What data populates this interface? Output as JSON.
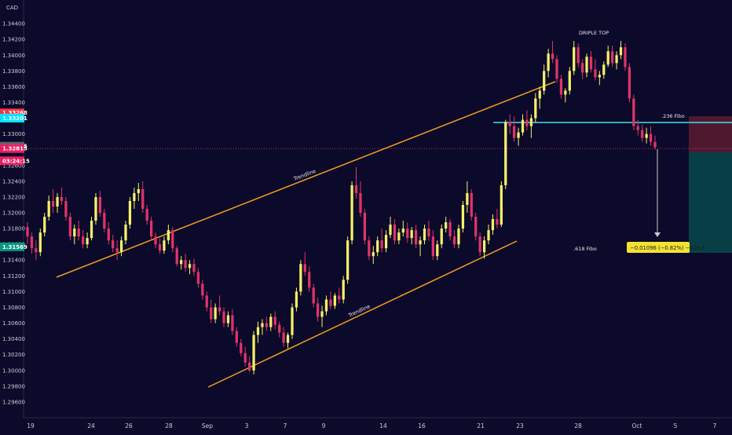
{
  "chart_data": {
    "type": "candlestick",
    "currency_label": "CAD",
    "ylim": [
      1.294,
      1.347
    ],
    "y_ticks": [
      "1.34400",
      "1.34200",
      "1.34000",
      "1.33800",
      "1.33600",
      "1.33400",
      "1.33200",
      "1.33000",
      "1.32800",
      "1.32600",
      "1.32400",
      "1.32200",
      "1.32000",
      "1.31800",
      "1.31600",
      "1.31400",
      "1.31200",
      "1.31000",
      "1.30800",
      "1.30600",
      "1.30400",
      "1.30200",
      "1.30000",
      "1.29800",
      "1.29600"
    ],
    "x_ticks": [
      "19",
      "24",
      "26",
      "28",
      "Sep",
      "3",
      "7",
      "9",
      "14",
      "16",
      "21",
      "23",
      "28",
      "Oct",
      "5",
      "7"
    ],
    "grid": false,
    "price_tags": [
      {
        "label": "1.33268",
        "value": 1.33268,
        "color": "#f23645"
      },
      {
        "label": "1.33201",
        "value": 1.33201,
        "color": "#00e5ff"
      },
      {
        "label": "1.32845",
        "value": 1.32845,
        "color": "#5d606b"
      },
      {
        "label": "1.32815",
        "value": 1.32815,
        "color": "#e91e63"
      },
      {
        "label": "03:24:15",
        "value": 1.3266,
        "color": "#e91e63"
      },
      {
        "label": "1.31569",
        "value": 1.31569,
        "color": "#089981"
      }
    ],
    "annotations": {
      "triple_top": "DRIPLE TOP",
      "fibo_236": ".236 Fibo",
      "fibo_618": ".618 Fibo",
      "trendline_upper": "Trendline",
      "trendline_lower": "Trendline",
      "measure": "−0.01096 (−0.82%) −109.6"
    },
    "colors": {
      "bull": "#f5f06a",
      "bear": "#e0336a",
      "trendline": "#f39c22",
      "fibo_line": "#3ee3ee",
      "measure_bg": "#f3e233"
    },
    "candles": [
      [
        1.3182,
        1.3188,
        1.316,
        1.317
      ],
      [
        1.317,
        1.3175,
        1.3148,
        1.3155
      ],
      [
        1.3155,
        1.3165,
        1.314,
        1.315
      ],
      [
        1.315,
        1.318,
        1.3145,
        1.3175
      ],
      [
        1.3175,
        1.32,
        1.317,
        1.3195
      ],
      [
        1.3195,
        1.3222,
        1.319,
        1.3215
      ],
      [
        1.3215,
        1.323,
        1.32,
        1.3208
      ],
      [
        1.3208,
        1.3225,
        1.32,
        1.322
      ],
      [
        1.322,
        1.3232,
        1.321,
        1.3215
      ],
      [
        1.3215,
        1.322,
        1.319,
        1.3195
      ],
      [
        1.3195,
        1.32,
        1.3165,
        1.317
      ],
      [
        1.317,
        1.3185,
        1.316,
        1.318
      ],
      [
        1.318,
        1.319,
        1.3165,
        1.317
      ],
      [
        1.317,
        1.3178,
        1.3155,
        1.316
      ],
      [
        1.316,
        1.3175,
        1.3155,
        1.3168
      ],
      [
        1.3168,
        1.3195,
        1.3165,
        1.319
      ],
      [
        1.319,
        1.3225,
        1.3185,
        1.322
      ],
      [
        1.322,
        1.3228,
        1.3195,
        1.32
      ],
      [
        1.32,
        1.3205,
        1.3175,
        1.318
      ],
      [
        1.318,
        1.3188,
        1.316,
        1.3165
      ],
      [
        1.3165,
        1.3172,
        1.315,
        1.3155
      ],
      [
        1.3155,
        1.3165,
        1.314,
        1.315
      ],
      [
        1.315,
        1.317,
        1.3145,
        1.3165
      ],
      [
        1.3165,
        1.319,
        1.316,
        1.3185
      ],
      [
        1.3185,
        1.322,
        1.318,
        1.3215
      ],
      [
        1.3215,
        1.3232,
        1.3205,
        1.3225
      ],
      [
        1.3225,
        1.3238,
        1.3215,
        1.323
      ],
      [
        1.323,
        1.324,
        1.32,
        1.3205
      ],
      [
        1.3205,
        1.321,
        1.3185,
        1.319
      ],
      [
        1.319,
        1.3195,
        1.3165,
        1.317
      ],
      [
        1.317,
        1.3175,
        1.3155,
        1.316
      ],
      [
        1.316,
        1.3168,
        1.3148,
        1.3152
      ],
      [
        1.3152,
        1.317,
        1.3148,
        1.3165
      ],
      [
        1.3165,
        1.3185,
        1.316,
        1.3178
      ],
      [
        1.3178,
        1.3182,
        1.315,
        1.3155
      ],
      [
        1.3155,
        1.3158,
        1.3132,
        1.3135
      ],
      [
        1.3135,
        1.3145,
        1.3128,
        1.314
      ],
      [
        1.314,
        1.3148,
        1.3125,
        1.313
      ],
      [
        1.313,
        1.314,
        1.3122,
        1.3135
      ],
      [
        1.3135,
        1.3142,
        1.312,
        1.3125
      ],
      [
        1.3125,
        1.313,
        1.3105,
        1.311
      ],
      [
        1.311,
        1.3115,
        1.309,
        1.3095
      ],
      [
        1.3095,
        1.31,
        1.3075,
        1.308
      ],
      [
        1.308,
        1.309,
        1.306,
        1.3065
      ],
      [
        1.3065,
        1.3085,
        1.306,
        1.308
      ],
      [
        1.308,
        1.3095,
        1.307,
        1.3075
      ],
      [
        1.3075,
        1.308,
        1.3055,
        1.306
      ],
      [
        1.306,
        1.3075,
        1.3055,
        1.307
      ],
      [
        1.307,
        1.3078,
        1.3045,
        1.305
      ],
      [
        1.305,
        1.3055,
        1.303,
        1.3035
      ],
      [
        1.3035,
        1.304,
        1.3018,
        1.3022
      ],
      [
        1.3022,
        1.303,
        1.3005,
        1.301
      ],
      [
        1.301,
        1.3018,
        1.2998,
        1.3
      ],
      [
        1.3,
        1.305,
        1.2995,
        1.3045
      ],
      [
        1.3045,
        1.3062,
        1.3035,
        1.3055
      ],
      [
        1.3055,
        1.3065,
        1.3045,
        1.306
      ],
      [
        1.306,
        1.3068,
        1.305,
        1.3055
      ],
      [
        1.3055,
        1.3072,
        1.305,
        1.3068
      ],
      [
        1.3068,
        1.3075,
        1.3052,
        1.3058
      ],
      [
        1.3058,
        1.3062,
        1.3042,
        1.3048
      ],
      [
        1.3048,
        1.3055,
        1.303,
        1.3035
      ],
      [
        1.3035,
        1.3048,
        1.3028,
        1.3045
      ],
      [
        1.3045,
        1.3085,
        1.304,
        1.308
      ],
      [
        1.308,
        1.3105,
        1.3075,
        1.31
      ],
      [
        1.31,
        1.314,
        1.3095,
        1.3135
      ],
      [
        1.3135,
        1.315,
        1.312,
        1.3125
      ],
      [
        1.3125,
        1.3132,
        1.31,
        1.3105
      ],
      [
        1.3105,
        1.311,
        1.308,
        1.3085
      ],
      [
        1.3085,
        1.3092,
        1.3062,
        1.3068
      ],
      [
        1.3068,
        1.3082,
        1.3055,
        1.3075
      ],
      [
        1.3075,
        1.3095,
        1.307,
        1.309
      ],
      [
        1.309,
        1.31,
        1.3078,
        1.3082
      ],
      [
        1.3082,
        1.3098,
        1.3078,
        1.3095
      ],
      [
        1.3095,
        1.3105,
        1.3085,
        1.309
      ],
      [
        1.309,
        1.312,
        1.3085,
        1.3115
      ],
      [
        1.3115,
        1.317,
        1.311,
        1.3165
      ],
      [
        1.3165,
        1.324,
        1.316,
        1.3235
      ],
      [
        1.3235,
        1.3258,
        1.3218,
        1.3225
      ],
      [
        1.3225,
        1.324,
        1.3195,
        1.32
      ],
      [
        1.32,
        1.3205,
        1.316,
        1.3165
      ],
      [
        1.3165,
        1.317,
        1.314,
        1.3145
      ],
      [
        1.3145,
        1.3158,
        1.3135,
        1.315
      ],
      [
        1.315,
        1.317,
        1.3145,
        1.3165
      ],
      [
        1.3165,
        1.318,
        1.315,
        1.3155
      ],
      [
        1.3155,
        1.3178,
        1.315,
        1.3172
      ],
      [
        1.3172,
        1.3195,
        1.3168,
        1.3185
      ],
      [
        1.3185,
        1.3192,
        1.316,
        1.3165
      ],
      [
        1.3165,
        1.318,
        1.316,
        1.3175
      ],
      [
        1.3175,
        1.319,
        1.317,
        1.318
      ],
      [
        1.318,
        1.3188,
        1.3162,
        1.3168
      ],
      [
        1.3168,
        1.3182,
        1.316,
        1.3178
      ],
      [
        1.3178,
        1.3185,
        1.3155,
        1.316
      ],
      [
        1.316,
        1.317,
        1.3145,
        1.3165
      ],
      [
        1.3165,
        1.3185,
        1.316,
        1.318
      ],
      [
        1.318,
        1.319,
        1.3165,
        1.317
      ],
      [
        1.317,
        1.3178,
        1.314,
        1.3145
      ],
      [
        1.3145,
        1.3165,
        1.314,
        1.316
      ],
      [
        1.316,
        1.3185,
        1.3155,
        1.318
      ],
      [
        1.318,
        1.3195,
        1.3175,
        1.3188
      ],
      [
        1.3188,
        1.3192,
        1.3165,
        1.317
      ],
      [
        1.317,
        1.3178,
        1.3155,
        1.316
      ],
      [
        1.316,
        1.3185,
        1.3155,
        1.318
      ],
      [
        1.318,
        1.3215,
        1.3175,
        1.321
      ],
      [
        1.321,
        1.324,
        1.32,
        1.3225
      ],
      [
        1.3225,
        1.323,
        1.319,
        1.3195
      ],
      [
        1.3195,
        1.32,
        1.3165,
        1.317
      ],
      [
        1.317,
        1.3175,
        1.3145,
        1.315
      ],
      [
        1.315,
        1.317,
        1.3142,
        1.3165
      ],
      [
        1.3165,
        1.3185,
        1.316,
        1.3178
      ],
      [
        1.3178,
        1.3198,
        1.3172,
        1.3192
      ],
      [
        1.3192,
        1.3205,
        1.318,
        1.3185
      ],
      [
        1.3185,
        1.324,
        1.3182,
        1.3235
      ],
      [
        1.3235,
        1.3318,
        1.323,
        1.3315
      ],
      [
        1.3315,
        1.3325,
        1.33,
        1.331
      ],
      [
        1.331,
        1.3322,
        1.329,
        1.3295
      ],
      [
        1.3295,
        1.3308,
        1.3285,
        1.3302
      ],
      [
        1.3302,
        1.3325,
        1.3298,
        1.3318
      ],
      [
        1.3318,
        1.333,
        1.3305,
        1.331
      ],
      [
        1.331,
        1.3325,
        1.3295,
        1.332
      ],
      [
        1.332,
        1.3352,
        1.3315,
        1.3345
      ],
      [
        1.3345,
        1.336,
        1.3332,
        1.3355
      ],
      [
        1.3355,
        1.3388,
        1.335,
        1.338
      ],
      [
        1.338,
        1.3408,
        1.3372,
        1.3402
      ],
      [
        1.3402,
        1.3418,
        1.339,
        1.3395
      ],
      [
        1.3395,
        1.34,
        1.3365,
        1.337
      ],
      [
        1.337,
        1.3375,
        1.3345,
        1.335
      ],
      [
        1.335,
        1.3358,
        1.334,
        1.3355
      ],
      [
        1.3355,
        1.3385,
        1.335,
        1.338
      ],
      [
        1.338,
        1.3418,
        1.3375,
        1.341
      ],
      [
        1.341,
        1.3415,
        1.3385,
        1.339
      ],
      [
        1.339,
        1.3395,
        1.337,
        1.3378
      ],
      [
        1.3378,
        1.3402,
        1.3372,
        1.3398
      ],
      [
        1.3398,
        1.3405,
        1.3378,
        1.3382
      ],
      [
        1.3382,
        1.3395,
        1.3368,
        1.3372
      ],
      [
        1.3372,
        1.338,
        1.3362,
        1.3375
      ],
      [
        1.3375,
        1.3392,
        1.337,
        1.3388
      ],
      [
        1.3388,
        1.3412,
        1.3385,
        1.3405
      ],
      [
        1.3405,
        1.3412,
        1.3385,
        1.339
      ],
      [
        1.339,
        1.3405,
        1.3382,
        1.34
      ],
      [
        1.34,
        1.3418,
        1.3395,
        1.341
      ],
      [
        1.341,
        1.3415,
        1.338,
        1.3385
      ],
      [
        1.3385,
        1.339,
        1.334,
        1.3345
      ],
      [
        1.3345,
        1.335,
        1.3305,
        1.331
      ],
      [
        1.331,
        1.3318,
        1.3298,
        1.3305
      ],
      [
        1.3305,
        1.3312,
        1.329,
        1.3295
      ],
      [
        1.3295,
        1.3308,
        1.3288,
        1.33
      ],
      [
        1.33,
        1.331,
        1.3285,
        1.329
      ],
      [
        1.329,
        1.3298,
        1.328,
        1.3283
      ]
    ]
  }
}
